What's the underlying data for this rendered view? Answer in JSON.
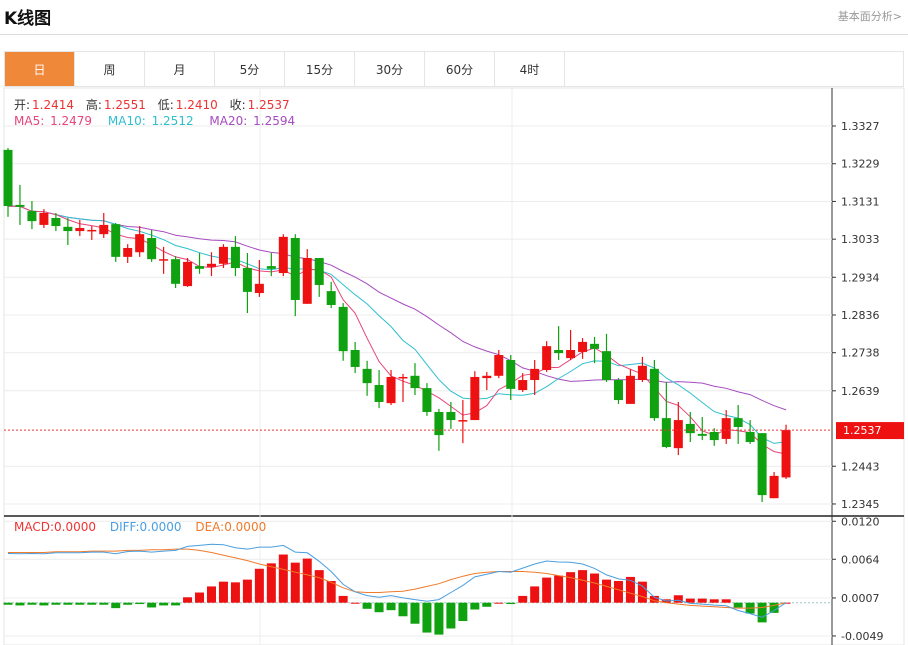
{
  "header": {
    "title": "K线图",
    "more_link": "基本面分析>"
  },
  "tabs": [
    {
      "label": "日",
      "active": true
    },
    {
      "label": "周"
    },
    {
      "label": "月"
    },
    {
      "label": "5分"
    },
    {
      "label": "15分"
    },
    {
      "label": "30分"
    },
    {
      "label": "60分"
    },
    {
      "label": "4时"
    }
  ],
  "ohlc": {
    "open_label": "开:",
    "open": "1.2414",
    "high_label": "高:",
    "high": "1.2551",
    "low_label": "低:",
    "low": "1.2410",
    "close_label": "收:",
    "close": "1.2537"
  },
  "ma": {
    "ma5_label": "MA5: ",
    "ma5": "1.2479",
    "ma10_label": "MA10: ",
    "ma10": "1.2512",
    "ma20_label": "MA20: ",
    "ma20": "1.2594"
  },
  "macd_legend": {
    "macd": "MACD:0.0000",
    "diff": "DIFF:0.0000",
    "dea": "DEA:0.0000"
  },
  "colors": {
    "up": "#ee1111",
    "down": "#0fa10f",
    "accent": "#f0883a",
    "ma5": "#e8457a",
    "ma10": "#2ebfcf",
    "ma20": "#a64bc0",
    "diff": "#4a9ee0",
    "dea": "#f07a2a"
  },
  "current_price": "1.2537",
  "chart_data": {
    "type": "candlestick",
    "price_ticks": [
      "1.3327",
      "1.3229",
      "1.3131",
      "1.3033",
      "1.2934",
      "1.2836",
      "1.2738",
      "1.2639",
      "1.2443",
      "1.2345"
    ],
    "macd_ticks": [
      "0.0120",
      "0.0064",
      "0.0007",
      "-0.0049"
    ],
    "candles": [
      [
        1.3265,
        1.327,
        1.3091,
        1.3119
      ],
      [
        1.3122,
        1.3174,
        1.307,
        1.3117
      ],
      [
        1.3106,
        1.3132,
        1.3059,
        1.308
      ],
      [
        1.307,
        1.3111,
        1.3062,
        1.3101
      ],
      [
        1.3088,
        1.3101,
        1.3054,
        1.3067
      ],
      [
        1.3065,
        1.3088,
        1.3018,
        1.3054
      ],
      [
        1.3054,
        1.3083,
        1.3041,
        1.3062
      ],
      [
        1.3054,
        1.3067,
        1.3031,
        1.3057
      ],
      [
        1.3046,
        1.3101,
        1.3036,
        1.307
      ],
      [
        1.3072,
        1.3075,
        1.2974,
        1.2987
      ],
      [
        1.2987,
        1.302,
        1.2971,
        1.301
      ],
      [
        1.2999,
        1.3067,
        1.2987,
        1.3046
      ],
      [
        1.3036,
        1.3057,
        1.2974,
        1.2981
      ],
      [
        1.2979,
        1.3013,
        1.2943,
        1.2981
      ],
      [
        1.2981,
        1.2989,
        1.2906,
        1.2917
      ],
      [
        1.2911,
        1.2984,
        1.2909,
        1.2974
      ],
      [
        1.2963,
        1.2997,
        1.2943,
        1.2956
      ],
      [
        1.2961,
        1.2999,
        1.2937,
        1.2969
      ],
      [
        1.2969,
        1.302,
        1.2958,
        1.3013
      ],
      [
        1.3013,
        1.3041,
        1.2937,
        1.2958
      ],
      [
        1.2958,
        1.2997,
        1.2841,
        1.2896
      ],
      [
        1.2893,
        1.2979,
        1.2883,
        1.2917
      ],
      [
        1.2963,
        1.2997,
        1.2937,
        1.2956
      ],
      [
        1.2945,
        1.3046,
        1.2937,
        1.3039
      ],
      [
        1.3036,
        1.3046,
        1.2833,
        1.2875
      ],
      [
        1.2865,
        1.3007,
        1.2865,
        1.2984
      ],
      [
        1.2984,
        1.2984,
        1.2883,
        1.2914
      ],
      [
        1.2898,
        1.2922,
        1.2854,
        1.2862
      ],
      [
        1.2857,
        1.2867,
        1.2717,
        1.2742
      ],
      [
        1.2745,
        1.2766,
        1.2685,
        1.2701
      ],
      [
        1.2696,
        1.2717,
        1.2626,
        1.2659
      ],
      [
        1.2654,
        1.2693,
        1.2594,
        1.261
      ],
      [
        1.2607,
        1.2693,
        1.2602,
        1.2675
      ],
      [
        1.2672,
        1.2683,
        1.261,
        1.2675
      ],
      [
        1.2678,
        1.2711,
        1.2628,
        1.2646
      ],
      [
        1.2646,
        1.2659,
        1.2574,
        1.2584
      ],
      [
        1.2584,
        1.2592,
        1.2483,
        1.2524
      ],
      [
        1.2584,
        1.261,
        1.254,
        1.2563
      ],
      [
        1.256,
        1.2615,
        1.2503,
        1.2563
      ],
      [
        1.2563,
        1.269,
        1.2563,
        1.2675
      ],
      [
        1.2672,
        1.2688,
        1.2641,
        1.2678
      ],
      [
        1.2678,
        1.2745,
        1.2672,
        1.2732
      ],
      [
        1.2719,
        1.2732,
        1.2615,
        1.2644
      ],
      [
        1.2641,
        1.2685,
        1.2636,
        1.2667
      ],
      [
        1.2667,
        1.2719,
        1.2628,
        1.2696
      ],
      [
        1.2693,
        1.2768,
        1.2688,
        1.2755
      ],
      [
        1.2745,
        1.2807,
        1.2719,
        1.2737
      ],
      [
        1.2724,
        1.2797,
        1.2719,
        1.2745
      ],
      [
        1.274,
        1.2776,
        1.2722,
        1.2766
      ],
      [
        1.2761,
        1.2779,
        1.2711,
        1.2748
      ],
      [
        1.2742,
        1.2787,
        1.2662,
        1.2667
      ],
      [
        1.2667,
        1.2672,
        1.2605,
        1.2615
      ],
      [
        1.2605,
        1.2696,
        1.2605,
        1.2678
      ],
      [
        1.2667,
        1.2727,
        1.2662,
        1.2704
      ],
      [
        1.2696,
        1.2719,
        1.2561,
        1.2568
      ],
      [
        1.2568,
        1.2662,
        1.249,
        1.2493
      ],
      [
        1.249,
        1.261,
        1.2472,
        1.2563
      ],
      [
        1.2553,
        1.2584,
        1.2506,
        1.2529
      ],
      [
        1.2527,
        1.2571,
        1.2511,
        1.2522
      ],
      [
        1.2532,
        1.2542,
        1.2496,
        1.2511
      ],
      [
        1.2514,
        1.2589,
        1.2501,
        1.2568
      ],
      [
        1.2568,
        1.2602,
        1.2501,
        1.2545
      ],
      [
        1.2532,
        1.2563,
        1.2501,
        1.2506
      ],
      [
        1.2529,
        1.2529,
        1.235,
        1.2368
      ],
      [
        1.236,
        1.2428,
        1.236,
        1.2418
      ],
      [
        1.2414,
        1.2551,
        1.241,
        1.2537
      ]
    ],
    "macd_hist": [
      -0.0003,
      -0.0004,
      -0.0003,
      -0.0004,
      -0.0003,
      -0.0003,
      -0.0003,
      -0.0003,
      -0.0003,
      -0.0008,
      -0.0003,
      -0.0002,
      -0.0007,
      -0.0004,
      -0.0004,
      0.0008,
      0.0015,
      0.0024,
      0.0031,
      0.003,
      0.0034,
      0.005,
      0.0058,
      0.0071,
      0.0059,
      0.0065,
      0.0048,
      0.0032,
      0.001,
      0.0,
      -0.0009,
      -0.0014,
      -0.0011,
      -0.002,
      -0.0031,
      -0.0044,
      -0.0047,
      -0.0038,
      -0.0027,
      -0.001,
      -0.0006,
      0.0,
      -0.0002,
      0.001,
      0.0024,
      0.0037,
      0.004,
      0.0045,
      0.0048,
      0.0043,
      0.0034,
      0.0032,
      0.0038,
      0.0031,
      0.001,
      0.0005,
      0.0011,
      0.0006,
      0.0006,
      0.0005,
      0.0005,
      -0.0007,
      -0.0016,
      -0.0029,
      -0.0015,
      0.0
    ],
    "dea": [
      0.0074,
      0.0074,
      0.0074,
      0.0074,
      0.0075,
      0.0075,
      0.0075,
      0.0076,
      0.0076,
      0.0076,
      0.0077,
      0.0077,
      0.0078,
      0.0078,
      0.0079,
      0.0079,
      0.0077,
      0.0074,
      0.007,
      0.0066,
      0.0062,
      0.0057,
      0.0053,
      0.0049,
      0.0045,
      0.0041,
      0.0037,
      0.003,
      0.0022,
      0.0016,
      0.0015,
      0.0015,
      0.0016,
      0.0017,
      0.002,
      0.0024,
      0.0028,
      0.0034,
      0.0039,
      0.0043,
      0.0045,
      0.0046,
      0.0046,
      0.0046,
      0.0045,
      0.0043,
      0.004,
      0.0037,
      0.0033,
      0.0029,
      0.0024,
      0.0019,
      0.0014,
      0.0009,
      0.0003,
      0.0,
      -0.0002,
      -0.0004,
      -0.0005,
      -0.0006,
      -0.0007,
      -0.0008,
      -0.0008,
      -0.0007,
      -0.0004,
      0.0
    ]
  }
}
